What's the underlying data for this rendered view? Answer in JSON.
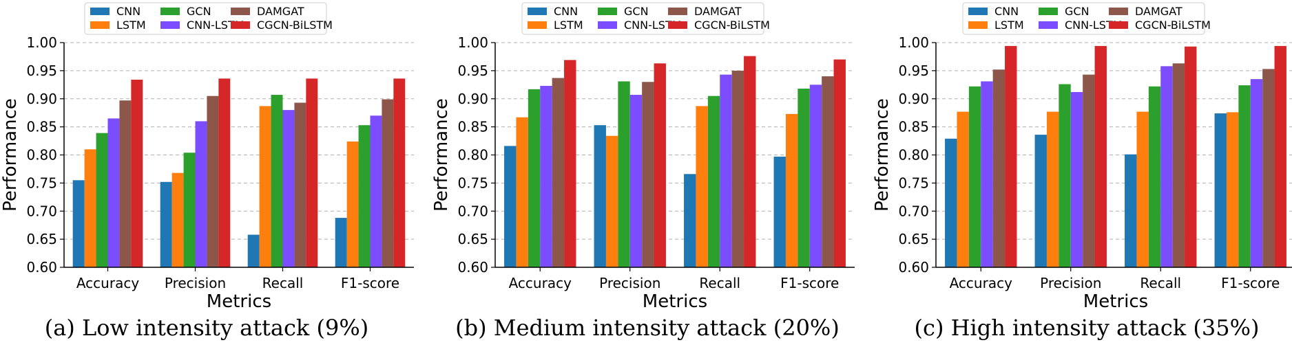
{
  "legend": {
    "entries": [
      "CNN",
      "LSTM",
      "GCN",
      "CNN-LSTM",
      "DAMGAT",
      "CGCN-BiLSTM"
    ],
    "colors": [
      "#1f77b4",
      "#ff7f0e",
      "#2ca02c",
      "#7b4dff",
      "#8c564b",
      "#d62728"
    ],
    "placement": "top-center"
  },
  "chart_data": [
    {
      "type": "bar",
      "caption": "(a) Low intensity attack (9%)",
      "categories": [
        "Accuracy",
        "Precision",
        "Recall",
        "F1-score"
      ],
      "xlabel": "Metrics",
      "ylabel": "Performance",
      "ylim": [
        0.6,
        1.0
      ],
      "yticks": [
        "0.60",
        "0.65",
        "0.70",
        "0.75",
        "0.80",
        "0.85",
        "0.90",
        "0.95",
        "1.00"
      ],
      "grid": "y-dashed",
      "series": [
        {
          "name": "CNN",
          "values": [
            0.755,
            0.752,
            0.658,
            0.688
          ]
        },
        {
          "name": "LSTM",
          "values": [
            0.81,
            0.768,
            0.887,
            0.824
          ]
        },
        {
          "name": "GCN",
          "values": [
            0.839,
            0.804,
            0.907,
            0.853
          ]
        },
        {
          "name": "CNN-LSTM",
          "values": [
            0.865,
            0.86,
            0.88,
            0.87
          ]
        },
        {
          "name": "DAMGAT",
          "values": [
            0.897,
            0.905,
            0.893,
            0.899
          ]
        },
        {
          "name": "CGCN-BiLSTM",
          "values": [
            0.934,
            0.936,
            0.936,
            0.936
          ]
        }
      ]
    },
    {
      "type": "bar",
      "caption": "(b) Medium intensity attack (20%)",
      "categories": [
        "Accuracy",
        "Precision",
        "Recall",
        "F1-score"
      ],
      "xlabel": "Metrics",
      "ylabel": "Performance",
      "ylim": [
        0.6,
        1.0
      ],
      "yticks": [
        "0.60",
        "0.65",
        "0.70",
        "0.75",
        "0.80",
        "0.85",
        "0.90",
        "0.95",
        "1.00"
      ],
      "grid": "y-dashed",
      "series": [
        {
          "name": "CNN",
          "values": [
            0.816,
            0.853,
            0.766,
            0.797
          ]
        },
        {
          "name": "LSTM",
          "values": [
            0.867,
            0.834,
            0.887,
            0.873
          ]
        },
        {
          "name": "GCN",
          "values": [
            0.917,
            0.931,
            0.905,
            0.918
          ]
        },
        {
          "name": "CNN-LSTM",
          "values": [
            0.923,
            0.907,
            0.943,
            0.925
          ]
        },
        {
          "name": "DAMGAT",
          "values": [
            0.937,
            0.93,
            0.95,
            0.94
          ]
        },
        {
          "name": "CGCN-BiLSTM",
          "values": [
            0.969,
            0.963,
            0.976,
            0.97
          ]
        }
      ]
    },
    {
      "type": "bar",
      "caption": "(c) High intensity attack (35%)",
      "categories": [
        "Accuracy",
        "Precision",
        "Recall",
        "F1-score"
      ],
      "xlabel": "Metrics",
      "ylabel": "Performance",
      "ylim": [
        0.6,
        1.0
      ],
      "yticks": [
        "0.60",
        "0.65",
        "0.70",
        "0.75",
        "0.80",
        "0.85",
        "0.90",
        "0.95",
        "1.00"
      ],
      "grid": "y-dashed",
      "series": [
        {
          "name": "CNN",
          "values": [
            0.829,
            0.836,
            0.801,
            0.874
          ]
        },
        {
          "name": "LSTM",
          "values": [
            0.877,
            0.877,
            0.877,
            0.876
          ]
        },
        {
          "name": "GCN",
          "values": [
            0.922,
            0.926,
            0.922,
            0.924
          ]
        },
        {
          "name": "CNN-LSTM",
          "values": [
            0.931,
            0.912,
            0.958,
            0.935
          ]
        },
        {
          "name": "DAMGAT",
          "values": [
            0.952,
            0.943,
            0.963,
            0.953
          ]
        },
        {
          "name": "CGCN-BiLSTM",
          "values": [
            0.994,
            0.994,
            0.993,
            0.994
          ]
        }
      ]
    }
  ]
}
